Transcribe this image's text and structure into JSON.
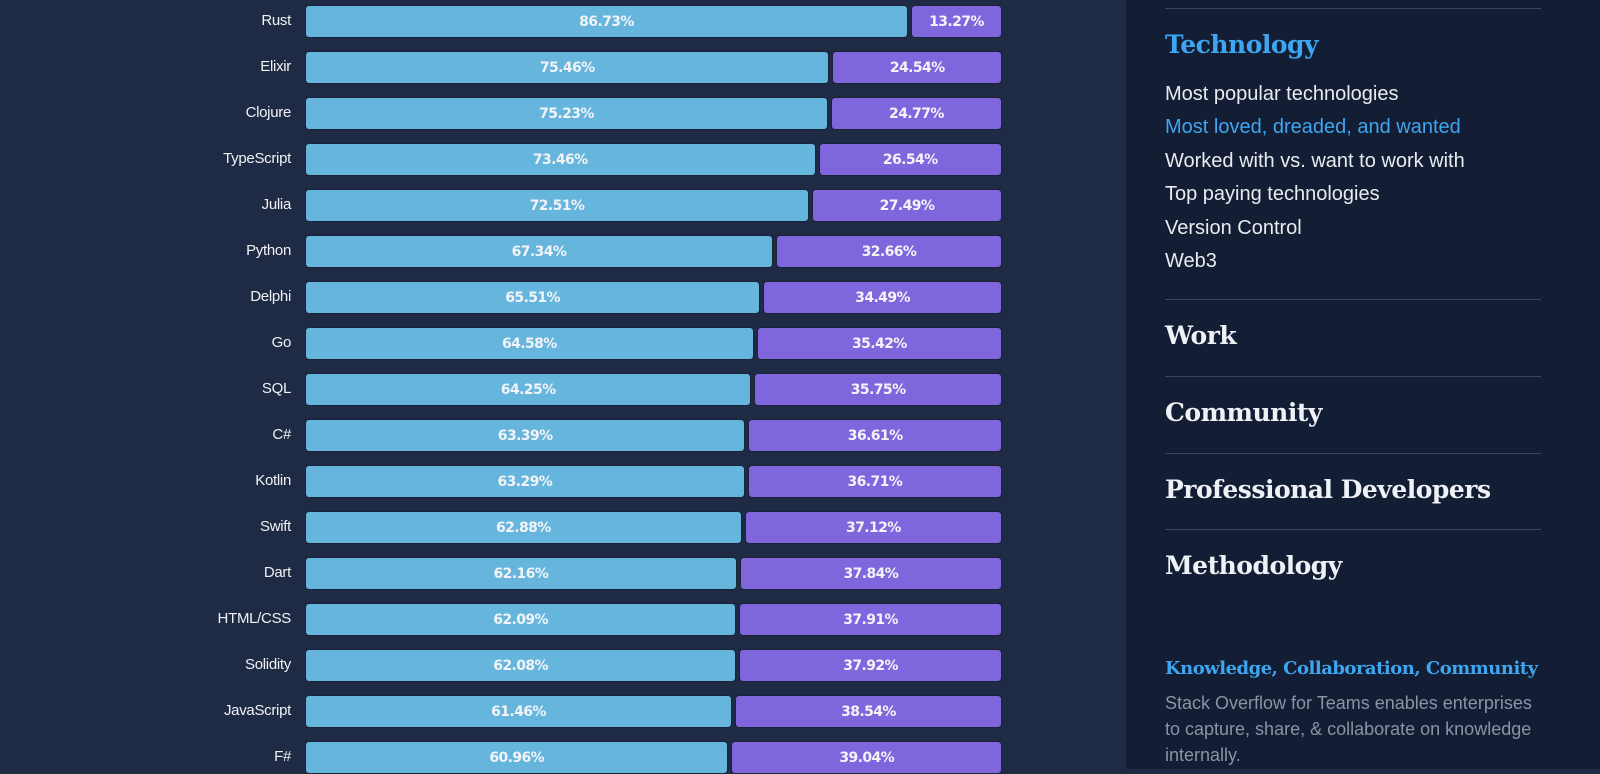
{
  "chart_data": {
    "type": "bar",
    "orientation": "horizontal",
    "stacked": true,
    "xlim": [
      0,
      100
    ],
    "categories": [
      "Rust",
      "Elixir",
      "Clojure",
      "TypeScript",
      "Julia",
      "Python",
      "Delphi",
      "Go",
      "SQL",
      "C#",
      "Kotlin",
      "Swift",
      "Dart",
      "HTML/CSS",
      "Solidity",
      "JavaScript",
      "F#"
    ],
    "series": [
      {
        "values": [
          86.73,
          75.46,
          75.23,
          73.46,
          72.51,
          67.34,
          65.51,
          64.58,
          64.25,
          63.39,
          63.29,
          62.88,
          62.16,
          62.09,
          62.08,
          61.46,
          60.96
        ],
        "color": "#65b5dc"
      },
      {
        "values": [
          13.27,
          24.54,
          24.77,
          26.54,
          27.49,
          32.66,
          34.49,
          35.42,
          35.75,
          36.61,
          36.71,
          37.12,
          37.84,
          37.91,
          37.92,
          38.54,
          39.04
        ],
        "color": "#8066dd"
      }
    ]
  },
  "sidebar": {
    "section_title": "Technology",
    "items": [
      {
        "label": "Most popular technologies",
        "active": false
      },
      {
        "label": "Most loved, dreaded, and wanted",
        "active": true
      },
      {
        "label": "Worked with vs. want to work with",
        "active": false
      },
      {
        "label": "Top paying technologies",
        "active": false
      },
      {
        "label": "Version Control",
        "active": false
      },
      {
        "label": "Web3",
        "active": false
      }
    ],
    "sections": [
      "Work",
      "Community",
      "Professional Developers",
      "Methodology"
    ],
    "promo": {
      "title": "Knowledge, Collaboration, Community",
      "body": "Stack Overflow for Teams enables enterprises to capture, share, & collaborate on knowledge internally."
    },
    "accent_color": "#3ea6f0"
  }
}
